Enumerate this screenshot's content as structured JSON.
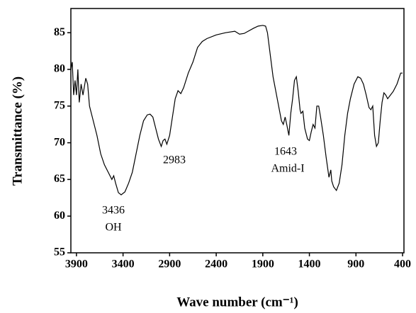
{
  "chart_data": {
    "type": "line",
    "xlabel": "Wave number (cm⁻¹)",
    "ylabel": "Transmittance (%)",
    "annotations": [
      "3436",
      "OH",
      "2983",
      "1643",
      "Amid-I"
    ],
    "xlim": [
      3960,
      385
    ],
    "ylim": [
      55,
      88.3
    ],
    "xticks": [
      3900,
      3400,
      2900,
      2400,
      1900,
      1400,
      900,
      400
    ],
    "yticks": [
      55,
      60,
      65,
      70,
      75,
      80,
      85
    ],
    "x": [
      3960,
      3945,
      3930,
      3915,
      3900,
      3885,
      3870,
      3850,
      3830,
      3800,
      3780,
      3760,
      3720,
      3700,
      3680,
      3640,
      3600,
      3560,
      3520,
      3500,
      3480,
      3450,
      3420,
      3380,
      3340,
      3300,
      3260,
      3220,
      3180,
      3140,
      3110,
      3080,
      3050,
      3020,
      2990,
      2970,
      2950,
      2930,
      2900,
      2870,
      2840,
      2810,
      2780,
      2750,
      2700,
      2650,
      2600,
      2550,
      2500,
      2400,
      2300,
      2200,
      2150,
      2100,
      2000,
      1950,
      1900,
      1870,
      1850,
      1820,
      1790,
      1760,
      1730,
      1700,
      1680,
      1660,
      1643,
      1620,
      1600,
      1580,
      1560,
      1540,
      1520,
      1500,
      1490,
      1470,
      1450,
      1420,
      1400,
      1380,
      1360,
      1340,
      1320,
      1300,
      1280,
      1250,
      1220,
      1190,
      1170,
      1160,
      1140,
      1110,
      1080,
      1050,
      1020,
      990,
      960,
      920,
      880,
      850,
      820,
      790,
      760,
      740,
      720,
      700,
      680,
      660,
      640,
      620,
      600,
      580,
      560,
      530,
      500,
      460,
      420,
      400
    ],
    "series": [
      {
        "color": "#000000",
        "values": [
          80,
          81,
          76.5,
          78.5,
          76.5,
          80,
          75.5,
          78,
          76.5,
          78.8,
          78,
          75,
          73,
          72,
          71,
          68.5,
          67,
          66,
          65,
          65.5,
          64.5,
          63.2,
          62.9,
          63.3,
          64.5,
          66,
          68.5,
          71,
          73,
          73.8,
          73.9,
          73.5,
          72,
          70.5,
          69.5,
          70.3,
          70.5,
          69.8,
          71,
          73.5,
          76,
          77.1,
          76.7,
          77.5,
          79.5,
          81,
          83,
          83.8,
          84.2,
          84.7,
          85,
          85.2,
          84.8,
          84.9,
          85.6,
          85.9,
          86,
          85.9,
          85,
          82,
          79,
          77,
          75,
          73,
          72.5,
          73.5,
          72.5,
          71,
          74,
          76,
          78.5,
          79,
          77,
          74.5,
          74,
          74.3,
          72,
          70.5,
          70.3,
          71.5,
          72.5,
          72,
          75,
          75,
          73.5,
          71,
          68,
          65.3,
          66.3,
          64.8,
          64,
          63.5,
          64.5,
          67,
          71,
          74,
          76,
          78,
          79,
          78.8,
          78,
          76.5,
          74.8,
          74.5,
          75,
          71,
          69.5,
          70,
          73,
          75.5,
          76.8,
          76.5,
          76,
          76.5,
          77,
          78,
          79.5,
          79.5
        ]
      }
    ]
  }
}
